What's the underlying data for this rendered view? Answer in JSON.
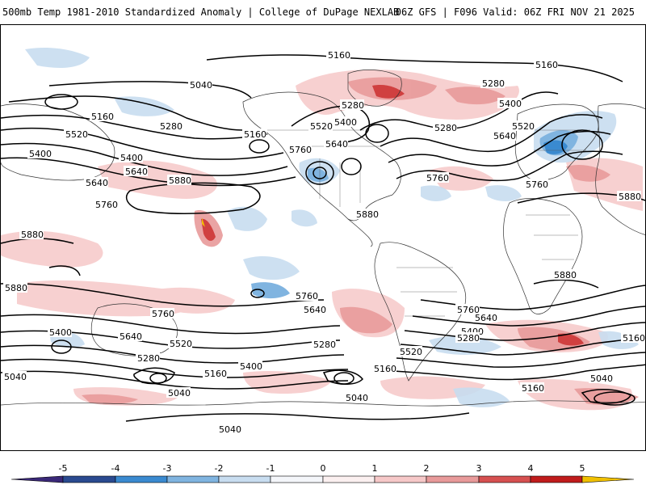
{
  "header": {
    "left_title": "500mb Temp 1981-2010 Standardized Anomaly | College of DuPage NEXLAB",
    "right_title": "06Z GFS | F096 Valid: 06Z FRI NOV 21 2025"
  },
  "map": {
    "contour_labels": {
      "a": "5160",
      "b": "5160",
      "c": "5040",
      "d": "5280",
      "e": "5280",
      "f": "5400",
      "g": "5520",
      "h": "5400",
      "i": "5640",
      "j": "5520",
      "k": "5160",
      "l": "5280",
      "m": "5160",
      "n": "5520",
      "o": "5400",
      "p": "5640",
      "q": "5760",
      "r": "5640",
      "s": "5280",
      "t": "5760",
      "u": "5880",
      "v": "5880",
      "w": "5880",
      "x": "5760",
      "y": "5880",
      "z": "5880",
      "aa": "5880",
      "ab": "5760",
      "ac": "5640",
      "ad": "5760",
      "ae": "5640",
      "af": "5760",
      "ag": "5640",
      "ah": "5400",
      "ai": "5520",
      "aj": "5400",
      "ak": "5280",
      "al": "5160",
      "am": "5280",
      "an": "5400",
      "ao": "5520",
      "ap": "5280",
      "aq": "5160",
      "ar": "5160",
      "as": "5040",
      "at": "5040",
      "au": "5040",
      "av": "5040",
      "aw": "5040",
      "ax": "5160",
      "ay": "5400",
      "az": "5640",
      "ba": "5760"
    }
  },
  "colorbar": {
    "ticks": [
      "-5",
      "-4",
      "-3",
      "-2",
      "-1",
      "0",
      "1",
      "2",
      "3",
      "4",
      "5"
    ],
    "colors": {
      "c_m5": "#3a2878",
      "c_m4": "#2a4a90",
      "c_m3": "#3a8ad0",
      "c_m2": "#80b4e0",
      "c_m1": "#c8ddf0",
      "c_0a": "#f4f6fa",
      "c_0b": "#fbf0f0",
      "c_1": "#f6c8c8",
      "c_2": "#e89a9a",
      "c_3": "#d65050",
      "c_4": "#c01c1c",
      "c_5": "#800000",
      "c_hi": "#f0c000"
    }
  }
}
